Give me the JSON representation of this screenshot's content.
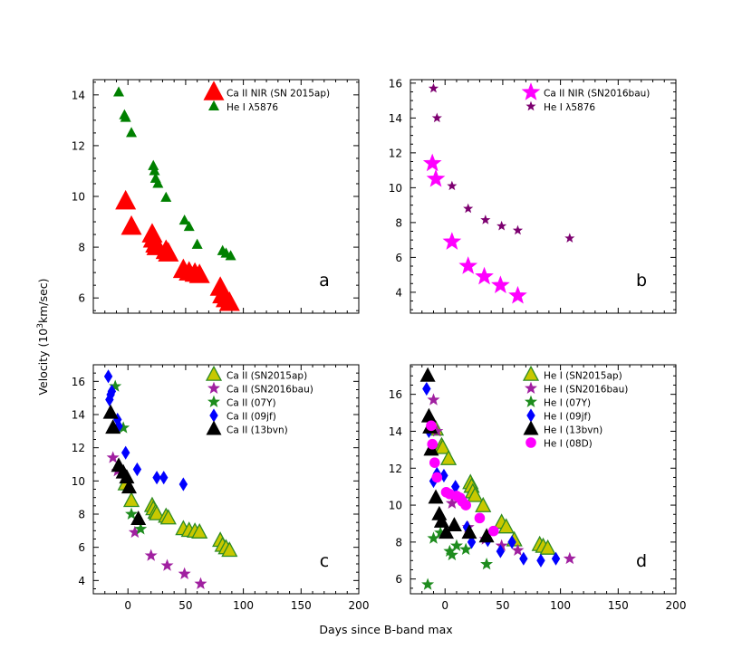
{
  "figure": {
    "ylabel_prefix": "Velocity (10",
    "ylabel_sup": "3",
    "ylabel_suffix": "km/sec)",
    "xlabel": "Days since B-band max"
  },
  "chart_data": [
    {
      "type": "scatter",
      "panel_label": "a",
      "xlim": [
        -30,
        200
      ],
      "ylim": [
        5.4,
        14.6
      ],
      "xticks": [],
      "yticks": [
        6,
        8,
        10,
        12,
        14
      ],
      "legend_position": "top-right",
      "series": [
        {
          "name": "Ca II NIR (SN 2015ap)",
          "marker": "triangle",
          "size": "large",
          "color": "#ff0000",
          "edge": "#ff0000",
          "x": [
            -2,
            3,
            21,
            22,
            24,
            25,
            33,
            35,
            48,
            53,
            58,
            62,
            80,
            82,
            85,
            88
          ],
          "y": [
            9.8,
            8.8,
            8.5,
            8.3,
            8.1,
            8.0,
            7.85,
            7.75,
            7.1,
            7.0,
            6.95,
            6.9,
            6.4,
            6.1,
            5.95,
            5.8
          ]
        },
        {
          "name": "He I λ5876",
          "marker": "triangle",
          "size": "small",
          "color": "#008000",
          "edge": "#008000",
          "x": [
            -8,
            -3,
            -2,
            3,
            22,
            23,
            24,
            26,
            33,
            49,
            53,
            60,
            82,
            85,
            89
          ],
          "y": [
            14.1,
            13.2,
            13.1,
            12.5,
            11.2,
            11.0,
            10.7,
            10.5,
            9.95,
            9.05,
            8.8,
            8.1,
            7.85,
            7.75,
            7.65
          ]
        }
      ]
    },
    {
      "type": "scatter",
      "panel_label": "b",
      "xlim": [
        -30,
        200
      ],
      "ylim": [
        2.8,
        16.2
      ],
      "xticks": [],
      "yticks": [
        4,
        6,
        8,
        10,
        12,
        14,
        16
      ],
      "legend_position": "top-right",
      "series": [
        {
          "name": "Ca II NIR (SN2016bau)",
          "marker": "star",
          "size": "large",
          "color": "#ff00ff",
          "edge": "#ff00ff",
          "x": [
            -11,
            -8,
            6,
            20,
            34,
            48,
            63
          ],
          "y": [
            11.4,
            10.5,
            6.9,
            5.5,
            4.9,
            4.4,
            3.8
          ]
        },
        {
          "name": "He I λ5876",
          "marker": "star",
          "size": "small",
          "color": "#7d0070",
          "edge": "#7d0070",
          "x": [
            -10,
            -7,
            6,
            20,
            35,
            49,
            63,
            108
          ],
          "y": [
            15.7,
            14.0,
            10.1,
            8.8,
            8.15,
            7.8,
            7.55,
            7.1
          ]
        }
      ]
    },
    {
      "type": "scatter",
      "panel_label": "c",
      "xlim": [
        -30,
        200
      ],
      "ylim": [
        3.2,
        17.0
      ],
      "xticks": [
        0,
        50,
        100,
        150,
        200
      ],
      "yticks": [
        4,
        6,
        8,
        10,
        12,
        14,
        16
      ],
      "legend_position": "top-right",
      "series": [
        {
          "name": "Ca II (SN2015ap)",
          "marker": "triangle",
          "size": "medium",
          "color": "#c8c800",
          "edge": "#2e8b22",
          "x": [
            -2,
            3,
            21,
            22,
            24,
            25,
            33,
            35,
            48,
            53,
            58,
            62,
            80,
            82,
            85,
            88
          ],
          "y": [
            9.8,
            8.8,
            8.5,
            8.3,
            8.1,
            8.0,
            7.85,
            7.75,
            7.1,
            7.0,
            6.95,
            6.9,
            6.4,
            6.1,
            5.95,
            5.8
          ]
        },
        {
          "name": "Ca II (SN2016bau)",
          "marker": "star",
          "size": "medium",
          "color": "#a020a0",
          "edge": "#a020a0",
          "x": [
            -13,
            -9,
            6,
            20,
            34,
            49,
            63
          ],
          "y": [
            11.4,
            10.6,
            6.9,
            5.5,
            4.9,
            4.4,
            3.8
          ]
        },
        {
          "name": "Ca II (07Y)",
          "marker": "star",
          "size": "medium",
          "color": "#1e8c1e",
          "edge": "#1e8c1e",
          "x": [
            -11,
            -4,
            3,
            11
          ],
          "y": [
            15.7,
            13.2,
            8.0,
            7.1
          ]
        },
        {
          "name": "Ca II (09jf)",
          "marker": "diamond",
          "size": "medium",
          "color": "#0000ff",
          "edge": "#0000ff",
          "x": [
            -17,
            -16,
            -15,
            -14,
            -9,
            -8,
            -2,
            8,
            25,
            31,
            48
          ],
          "y": [
            16.3,
            14.9,
            15.2,
            15.4,
            13.7,
            13.3,
            11.7,
            10.7,
            10.2,
            10.2,
            9.8
          ]
        },
        {
          "name": "Ca II (13bvn)",
          "marker": "triangle",
          "size": "medium",
          "color": "#000000",
          "edge": "#000000",
          "x": [
            -15,
            -13,
            -8,
            -4,
            -1,
            1,
            9
          ],
          "y": [
            14.1,
            13.2,
            10.9,
            10.5,
            10.2,
            9.6,
            7.7
          ]
        }
      ]
    },
    {
      "type": "scatter",
      "panel_label": "d",
      "xlim": [
        -30,
        200
      ],
      "ylim": [
        5.2,
        17.6
      ],
      "xticks": [
        0,
        50,
        100,
        150,
        200
      ],
      "yticks": [
        6,
        8,
        10,
        12,
        14,
        16
      ],
      "legend_position": "top-right",
      "series": [
        {
          "name": "He I (SN2015ap)",
          "marker": "triangle",
          "size": "medium",
          "color": "#c8c800",
          "edge": "#2e8b22",
          "x": [
            -8,
            -3,
            -2,
            3,
            22,
            23,
            24,
            26,
            33,
            49,
            53,
            60,
            82,
            85,
            89
          ],
          "y": [
            14.1,
            13.2,
            13.1,
            12.5,
            11.2,
            11.0,
            10.7,
            10.5,
            9.95,
            9.05,
            8.8,
            8.1,
            7.85,
            7.75,
            7.65
          ]
        },
        {
          "name": "He I (SN2016bau)",
          "marker": "star",
          "size": "medium",
          "color": "#a020a0",
          "edge": "#a020a0",
          "x": [
            -10,
            -7,
            6,
            20,
            35,
            49,
            63,
            108
          ],
          "y": [
            15.7,
            14.0,
            10.1,
            8.8,
            8.15,
            7.8,
            7.55,
            7.1
          ]
        },
        {
          "name": "He I (07Y)",
          "marker": "star",
          "size": "medium",
          "color": "#1e8c1e",
          "edge": "#1e8c1e",
          "x": [
            -15,
            -10,
            -4,
            4,
            6,
            10,
            18,
            36
          ],
          "y": [
            5.7,
            8.2,
            8.5,
            7.5,
            7.3,
            7.8,
            7.6,
            6.8
          ]
        },
        {
          "name": "He I (09jf)",
          "marker": "diamond",
          "size": "medium",
          "color": "#0000ff",
          "edge": "#0000ff",
          "x": [
            -16,
            -14,
            -10,
            -7,
            -1,
            9,
            19,
            23,
            37,
            48,
            58,
            68,
            83,
            96
          ],
          "y": [
            16.3,
            14.0,
            11.3,
            11.7,
            11.6,
            11.0,
            8.8,
            8.0,
            8.1,
            7.5,
            8.0,
            7.1,
            7.0,
            7.1
          ]
        },
        {
          "name": "He I (13bvn)",
          "marker": "triangle",
          "size": "medium",
          "color": "#000000",
          "edge": "#000000",
          "x": [
            -15,
            -14,
            -13,
            -12,
            -8,
            -5,
            -3,
            1,
            8,
            21,
            36
          ],
          "y": [
            17.0,
            14.8,
            14.2,
            13.0,
            10.4,
            9.5,
            9.1,
            8.5,
            8.9,
            8.5,
            8.3
          ]
        },
        {
          "name": "He I (08D)",
          "marker": "circle",
          "size": "medium",
          "color": "#ff00ff",
          "edge": "#ff00ff",
          "x": [
            -12,
            -11,
            -9,
            -7,
            1,
            4,
            10,
            13,
            15,
            18,
            30,
            42
          ],
          "y": [
            14.3,
            13.3,
            12.3,
            11.5,
            10.7,
            10.6,
            10.5,
            10.4,
            10.2,
            10.0,
            9.3,
            8.6
          ]
        }
      ]
    }
  ]
}
